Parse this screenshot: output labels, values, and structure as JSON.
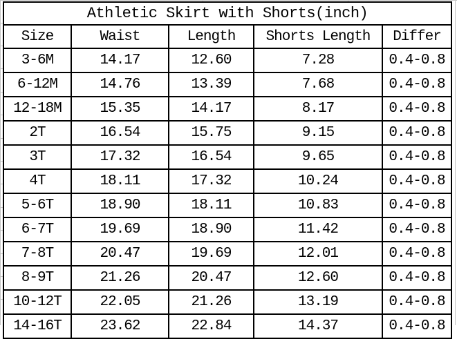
{
  "colors": {
    "text": "#000000",
    "border": "#000000",
    "background": "#ffffff",
    "faint_gridline": "#c6c6c6"
  },
  "chart_data": {
    "type": "table",
    "title": "Athletic Skirt with Shorts(inch)",
    "unit": "inch",
    "columns": [
      "Size",
      "Waist",
      "Length",
      "Shorts Length",
      "Differ"
    ],
    "rows": [
      [
        "3-6M",
        "14.17",
        "12.60",
        "7.28",
        "0.4-0.8"
      ],
      [
        "6-12M",
        "14.76",
        "13.39",
        "7.68",
        "0.4-0.8"
      ],
      [
        "12-18M",
        "15.35",
        "14.17",
        "8.17",
        "0.4-0.8"
      ],
      [
        "2T",
        "16.54",
        "15.75",
        "9.15",
        "0.4-0.8"
      ],
      [
        "3T",
        "17.32",
        "16.54",
        "9.65",
        "0.4-0.8"
      ],
      [
        "4T",
        "18.11",
        "17.32",
        "10.24",
        "0.4-0.8"
      ],
      [
        "5-6T",
        "18.90",
        "18.11",
        "10.83",
        "0.4-0.8"
      ],
      [
        "6-7T",
        "19.69",
        "18.90",
        "11.42",
        "0.4-0.8"
      ],
      [
        "7-8T",
        "20.47",
        "19.69",
        "12.01",
        "0.4-0.8"
      ],
      [
        "8-9T",
        "21.26",
        "20.47",
        "12.60",
        "0.4-0.8"
      ],
      [
        "10-12T",
        "22.05",
        "21.26",
        "13.19",
        "0.4-0.8"
      ],
      [
        "14-16T",
        "23.62",
        "22.84",
        "14.37",
        "0.4-0.8"
      ]
    ]
  }
}
